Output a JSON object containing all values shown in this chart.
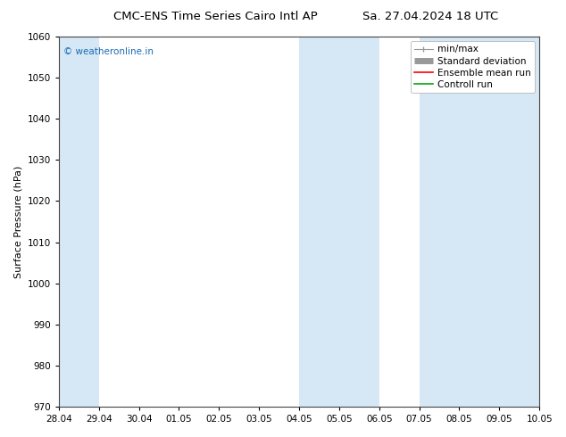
{
  "title": "CMC-ENS Time Series Cairo Intl AP",
  "title_right": "Sa. 27.04.2024 18 UTC",
  "ylabel": "Surface Pressure (hPa)",
  "ylim": [
    970,
    1060
  ],
  "yticks": [
    970,
    980,
    990,
    1000,
    1010,
    1020,
    1030,
    1040,
    1050,
    1060
  ],
  "xtick_labels": [
    "28.04",
    "29.04",
    "30.04",
    "01.05",
    "02.05",
    "03.05",
    "04.05",
    "05.05",
    "06.05",
    "07.05",
    "08.05",
    "09.05",
    "10.05"
  ],
  "xtick_positions": [
    0,
    1,
    2,
    3,
    4,
    5,
    6,
    7,
    8,
    9,
    10,
    11,
    12
  ],
  "xlim_start": 0,
  "xlim_end": 12,
  "shaded_bands": [
    {
      "x_start": 0,
      "x_end": 1,
      "color": "#d6e8f5"
    },
    {
      "x_start": 6,
      "x_end": 8,
      "color": "#d6e8f5"
    },
    {
      "x_start": 9,
      "x_end": 12,
      "color": "#d6e8f5"
    }
  ],
  "watermark_text": "© weatheronline.in",
  "watermark_color": "#1a6bb5",
  "legend_labels": [
    "min/max",
    "Standard deviation",
    "Ensemble mean run",
    "Controll run"
  ],
  "legend_colors": [
    "#999999",
    "#999999",
    "#ff0000",
    "#00aa00"
  ],
  "bg_color": "#ffffff",
  "axis_color": "#444444",
  "font_color": "#000000",
  "title_fontsize": 9.5,
  "label_fontsize": 8,
  "tick_fontsize": 7.5,
  "legend_fontsize": 7.5
}
